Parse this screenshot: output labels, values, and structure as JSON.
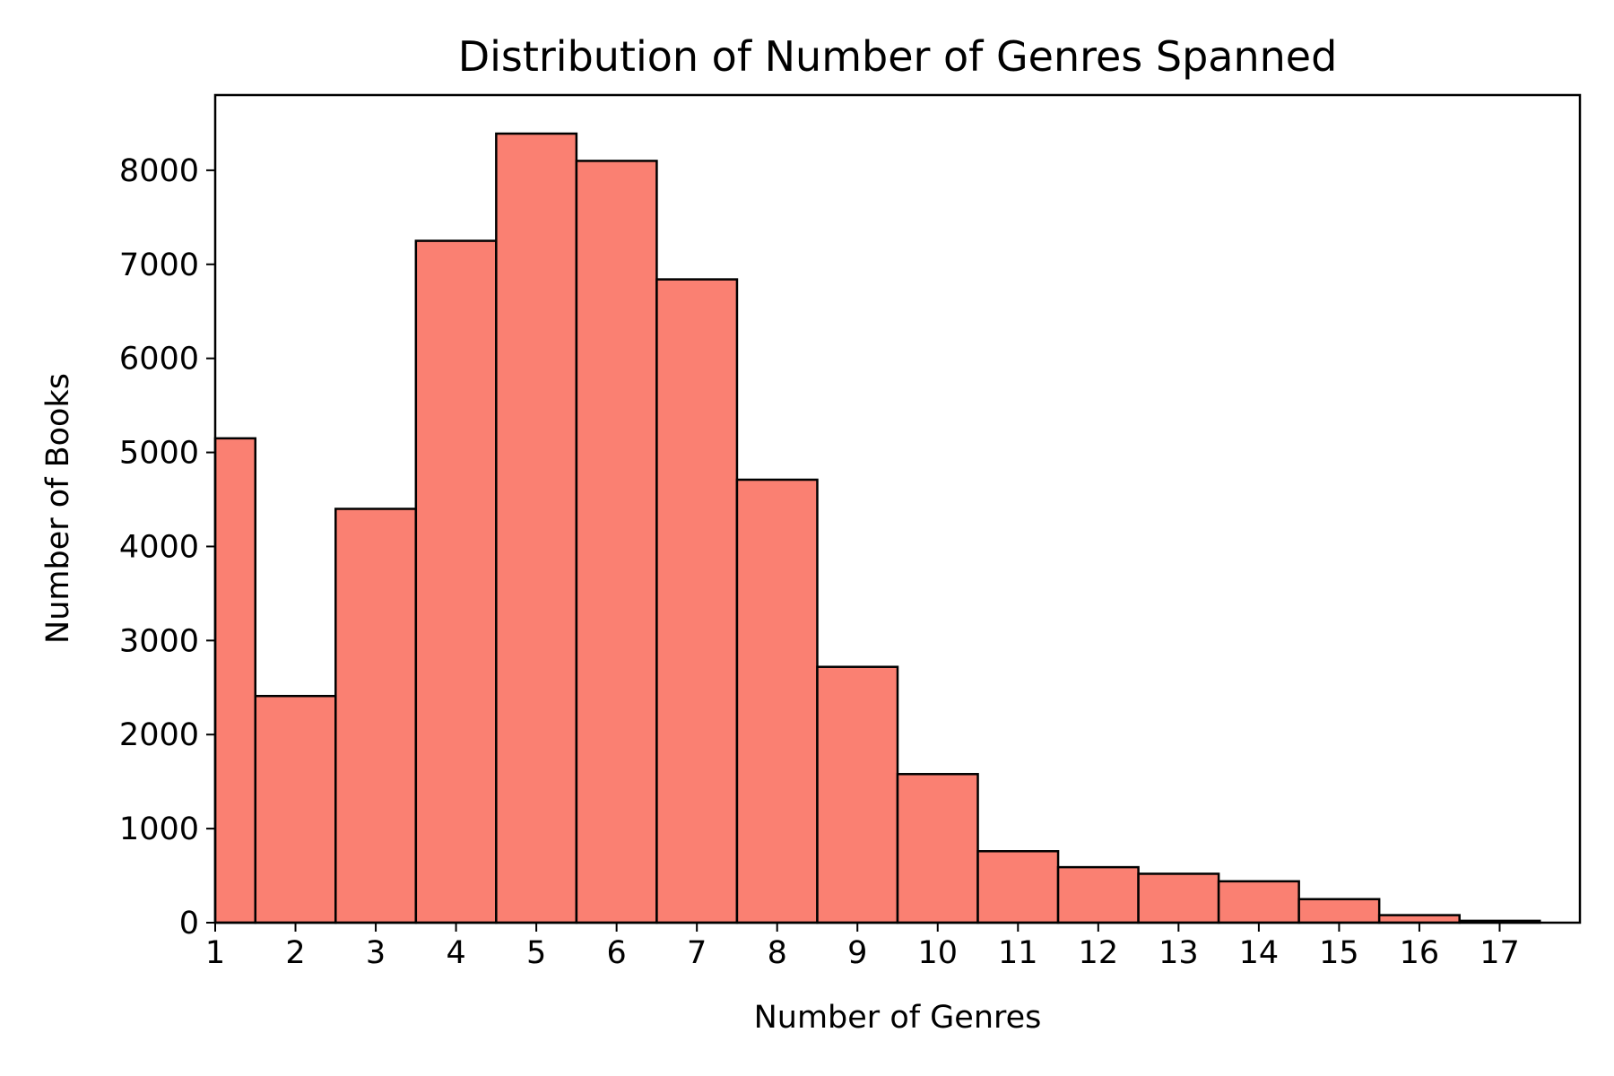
{
  "chart_data": {
    "type": "bar",
    "title": "Distribution of Number of Genres Spanned",
    "xlabel": "Number of Genres",
    "ylabel": "Number of Books",
    "bins": [
      {
        "x_start": 1.0,
        "x_end": 1.5,
        "value": 5150
      },
      {
        "x_start": 1.5,
        "x_end": 2.5,
        "value": 2410
      },
      {
        "x_start": 2.5,
        "x_end": 3.5,
        "value": 4400
      },
      {
        "x_start": 3.5,
        "x_end": 4.5,
        "value": 7250
      },
      {
        "x_start": 4.5,
        "x_end": 5.5,
        "value": 8390
      },
      {
        "x_start": 5.5,
        "x_end": 6.5,
        "value": 8100
      },
      {
        "x_start": 6.5,
        "x_end": 7.5,
        "value": 6840
      },
      {
        "x_start": 7.5,
        "x_end": 8.5,
        "value": 4710
      },
      {
        "x_start": 8.5,
        "x_end": 9.5,
        "value": 2720
      },
      {
        "x_start": 9.5,
        "x_end": 10.5,
        "value": 1580
      },
      {
        "x_start": 10.5,
        "x_end": 11.5,
        "value": 760
      },
      {
        "x_start": 11.5,
        "x_end": 12.5,
        "value": 590
      },
      {
        "x_start": 12.5,
        "x_end": 13.5,
        "value": 520
      },
      {
        "x_start": 13.5,
        "x_end": 14.5,
        "value": 440
      },
      {
        "x_start": 14.5,
        "x_end": 15.5,
        "value": 250
      },
      {
        "x_start": 15.5,
        "x_end": 16.5,
        "value": 80
      },
      {
        "x_start": 16.5,
        "x_end": 17.5,
        "value": 20
      }
    ],
    "xlim": [
      1,
      18
    ],
    "ylim": [
      0,
      8800
    ],
    "x_ticks": [
      1,
      2,
      3,
      4,
      5,
      6,
      7,
      8,
      9,
      10,
      11,
      12,
      13,
      14,
      15,
      16,
      17
    ],
    "x_tick_labels": [
      "1",
      "2",
      "3",
      "4",
      "5",
      "6",
      "7",
      "8",
      "9",
      "10",
      "11",
      "12",
      "13",
      "14",
      "15",
      "16",
      "17"
    ],
    "y_ticks": [
      0,
      1000,
      2000,
      3000,
      4000,
      5000,
      6000,
      7000,
      8000
    ],
    "y_tick_labels": [
      "0",
      "1000",
      "2000",
      "3000",
      "4000",
      "5000",
      "6000",
      "7000",
      "8000"
    ],
    "grid": false,
    "legend": "none",
    "bar_color": "#fa8072",
    "edge_color": "#000000"
  }
}
